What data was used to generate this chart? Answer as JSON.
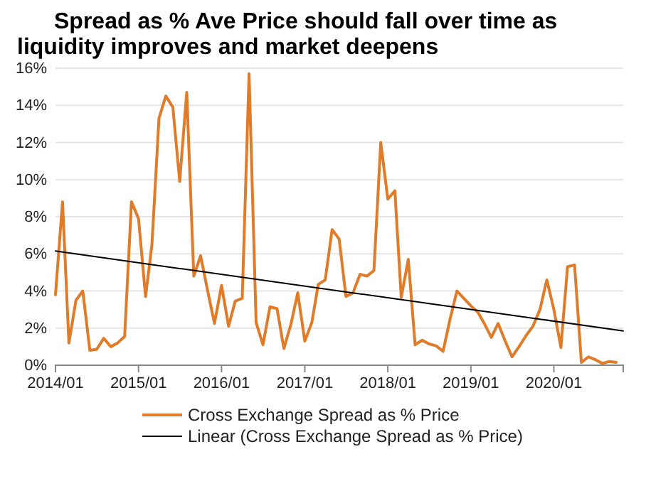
{
  "chart_data": {
    "type": "line",
    "title": "Spread as % Ave Price should fall over time as liquidity improves and market deepens",
    "x": [
      "2014-01",
      "2014-02",
      "2014-03",
      "2014-04",
      "2014-05",
      "2014-06",
      "2014-07",
      "2014-08",
      "2014-09",
      "2014-10",
      "2014-11",
      "2014-12",
      "2015-01",
      "2015-02",
      "2015-03",
      "2015-04",
      "2015-05",
      "2015-06",
      "2015-07",
      "2015-08",
      "2015-09",
      "2015-10",
      "2015-11",
      "2015-12",
      "2016-01",
      "2016-02",
      "2016-03",
      "2016-04",
      "2016-05",
      "2016-06",
      "2016-07",
      "2016-08",
      "2016-09",
      "2016-10",
      "2016-11",
      "2016-12",
      "2017-01",
      "2017-02",
      "2017-03",
      "2017-04",
      "2017-05",
      "2017-06",
      "2017-07",
      "2017-08",
      "2017-09",
      "2017-10",
      "2017-11",
      "2017-12",
      "2018-01",
      "2018-02",
      "2018-03",
      "2018-04",
      "2018-05",
      "2018-06",
      "2018-07",
      "2018-08",
      "2018-09",
      "2018-10",
      "2018-11",
      "2018-12",
      "2019-01",
      "2019-02",
      "2019-03",
      "2019-04",
      "2019-05",
      "2019-06",
      "2019-07",
      "2019-08",
      "2019-09",
      "2019-10",
      "2019-11",
      "2019-12",
      "2020-01",
      "2020-02",
      "2020-03",
      "2020-04",
      "2020-05",
      "2020-06",
      "2020-07",
      "2020-08",
      "2020-09",
      "2020-10"
    ],
    "series": [
      {
        "name": "Cross Exchange Spread as % Price",
        "color": "#e07b2a",
        "values": [
          3.8,
          8.8,
          1.2,
          3.5,
          4.0,
          0.8,
          0.85,
          1.45,
          1.0,
          1.2,
          1.55,
          8.8,
          7.9,
          3.7,
          6.5,
          13.3,
          14.5,
          13.9,
          9.9,
          14.7,
          4.8,
          5.9,
          4.0,
          2.25,
          4.3,
          2.1,
          3.45,
          3.6,
          15.7,
          2.3,
          1.1,
          3.15,
          3.05,
          0.9,
          2.2,
          3.9,
          1.3,
          2.3,
          4.35,
          4.6,
          7.3,
          6.8,
          3.7,
          3.9,
          4.9,
          4.8,
          5.1,
          12.0,
          8.95,
          9.4,
          3.65,
          5.7,
          1.1,
          1.35,
          1.15,
          1.05,
          0.75,
          2.45,
          4.0,
          3.6,
          3.2,
          2.85,
          2.25,
          1.5,
          2.25,
          1.3,
          0.45,
          1.0,
          1.6,
          2.1,
          3.0,
          4.6,
          3.0,
          0.95,
          5.3,
          5.4,
          0.15,
          0.45,
          0.3,
          0.1,
          0.2,
          0.15
        ]
      },
      {
        "name": "Linear (Cross Exchange Spread as % Price)",
        "color": "#000000",
        "type": "line",
        "x": [
          "2014-01",
          "2020-11"
        ],
        "values": [
          6.15,
          1.85
        ]
      }
    ],
    "xlim": [
      "2014-01",
      "2020-11"
    ],
    "xticks": [
      {
        "value": "2014-01",
        "label": "2014/01"
      },
      {
        "value": "2015-01",
        "label": "2015/01"
      },
      {
        "value": "2016-01",
        "label": "2016/01"
      },
      {
        "value": "2017-01",
        "label": "2017/01"
      },
      {
        "value": "2018-01",
        "label": "2018/01"
      },
      {
        "value": "2019-01",
        "label": "2019/01"
      },
      {
        "value": "2020-01",
        "label": "2020/01"
      }
    ],
    "ylim": [
      0,
      16
    ],
    "yticks": [
      {
        "value": 0,
        "label": "0%"
      },
      {
        "value": 2,
        "label": "2%"
      },
      {
        "value": 4,
        "label": "4%"
      },
      {
        "value": 6,
        "label": "6%"
      },
      {
        "value": 8,
        "label": "8%"
      },
      {
        "value": 10,
        "label": "10%"
      },
      {
        "value": 12,
        "label": "12%"
      },
      {
        "value": 14,
        "label": "14%"
      },
      {
        "value": 16,
        "label": "16%"
      }
    ],
    "grid": "y",
    "legend": "bottom"
  }
}
